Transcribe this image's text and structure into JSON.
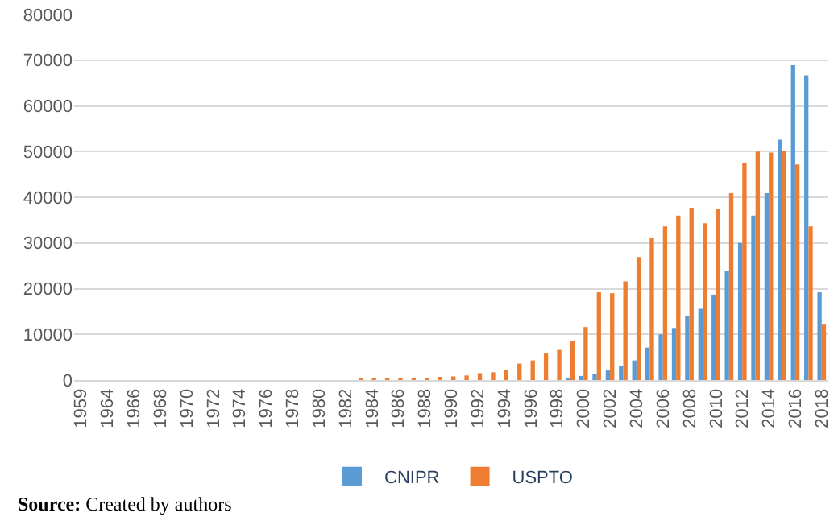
{
  "chart_data": {
    "type": "bar",
    "categories": [
      "1959",
      null,
      "1964",
      null,
      "1966",
      null,
      "1968",
      null,
      "1970",
      null,
      "1972",
      null,
      "1974",
      null,
      "1976",
      null,
      "1978",
      null,
      "1980",
      null,
      "1982",
      null,
      "1984",
      null,
      "1986",
      null,
      "1988",
      null,
      "1990",
      null,
      "1992",
      null,
      "1994",
      null,
      "1996",
      null,
      "1998",
      null,
      "2000",
      null,
      "2002",
      null,
      "2004",
      null,
      "2006",
      null,
      "2008",
      null,
      "2010",
      null,
      "2012",
      null,
      "2014",
      null,
      "2016",
      null,
      "2018"
    ],
    "series": [
      {
        "name": "CNIPR",
        "color": "#5b9bd5",
        "values": [
          0,
          0,
          0,
          0,
          0,
          0,
          0,
          0,
          0,
          0,
          0,
          0,
          0,
          0,
          0,
          0,
          0,
          0,
          0,
          0,
          0,
          0,
          0,
          0,
          0,
          0,
          0,
          0,
          0,
          0,
          0,
          0,
          0,
          0,
          0,
          0,
          0,
          300,
          900,
          1300,
          2100,
          3100,
          4300,
          7100,
          10000,
          11400,
          14000,
          15600,
          18700,
          23900,
          30000,
          36000,
          40900,
          52600,
          68900,
          66700,
          19200
        ]
      },
      {
        "name": "USPTO",
        "color": "#ed7d31",
        "values": [
          0,
          0,
          0,
          0,
          0,
          0,
          0,
          0,
          0,
          0,
          0,
          0,
          0,
          0,
          0,
          0,
          0,
          0,
          0,
          0,
          0,
          200,
          200,
          200,
          200,
          200,
          300,
          500,
          800,
          1000,
          1500,
          1700,
          2300,
          3600,
          4300,
          5800,
          6600,
          8600,
          11600,
          19200,
          19000,
          21600,
          26900,
          31200,
          33600,
          36000,
          37700,
          34300,
          37400,
          40900,
          47600,
          50000,
          49800,
          50200,
          47200,
          33600,
          12300
        ]
      }
    ],
    "ylim": [
      0,
      80000
    ],
    "yticks": [
      0,
      10000,
      20000,
      30000,
      40000,
      50000,
      60000,
      70000,
      80000
    ],
    "grid": "y",
    "legend": "bottom",
    "annotations": [
      "Source: Created by authors"
    ]
  }
}
